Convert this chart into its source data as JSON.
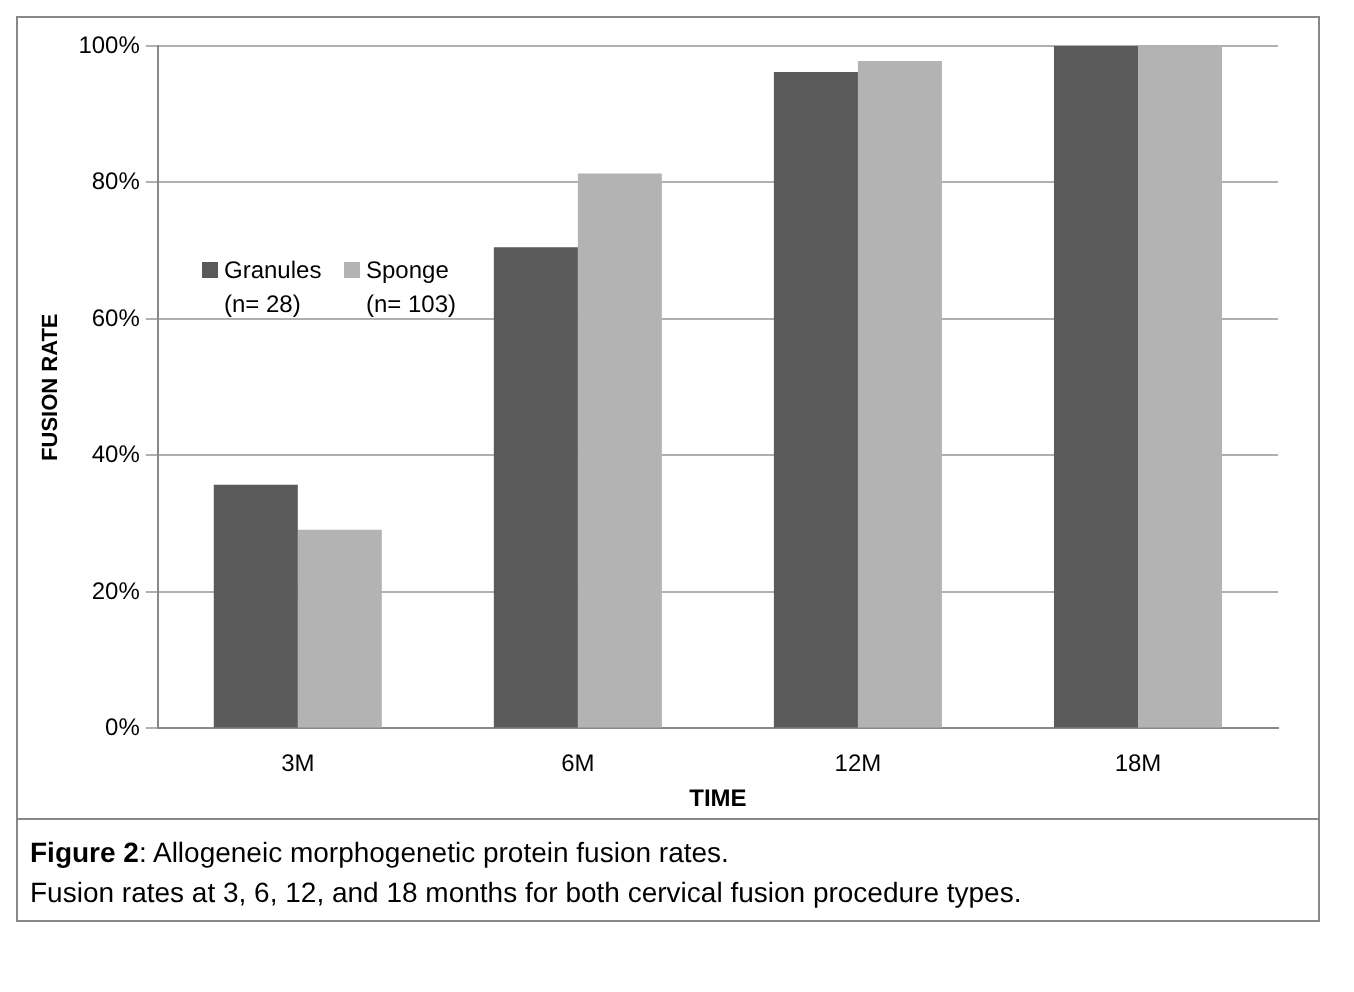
{
  "chart_data": {
    "type": "bar",
    "xlabel": "TIME",
    "ylabel": "FUSION RATE",
    "categories": [
      "3M",
      "6M",
      "12M",
      "18M"
    ],
    "series": [
      {
        "name": "Granules (n= 28)",
        "color": "#5a5a5a",
        "values": [
          35.7,
          70.5,
          96.2,
          100
        ]
      },
      {
        "name": "Sponge (n= 103)",
        "color": "#b3b3b3",
        "values": [
          29.1,
          81.3,
          97.8,
          100
        ]
      }
    ],
    "ylim": [
      0,
      100
    ],
    "yticks": [
      {
        "value": 0,
        "label": "0%"
      },
      {
        "value": 20,
        "label": "20%"
      },
      {
        "value": 40,
        "label": "40%"
      },
      {
        "value": 60,
        "label": "60%"
      },
      {
        "value": 80,
        "label": "80%"
      },
      {
        "value": 100,
        "label": "100%"
      }
    ],
    "grid": "y",
    "legend": "top left",
    "annotations": [
      "Figure 2: Allogeneic morphogenetic protein fusion rates.",
      "Fusion rates at 3, 6, 12, and 18 months for both cervical fusion procedure types."
    ]
  }
}
